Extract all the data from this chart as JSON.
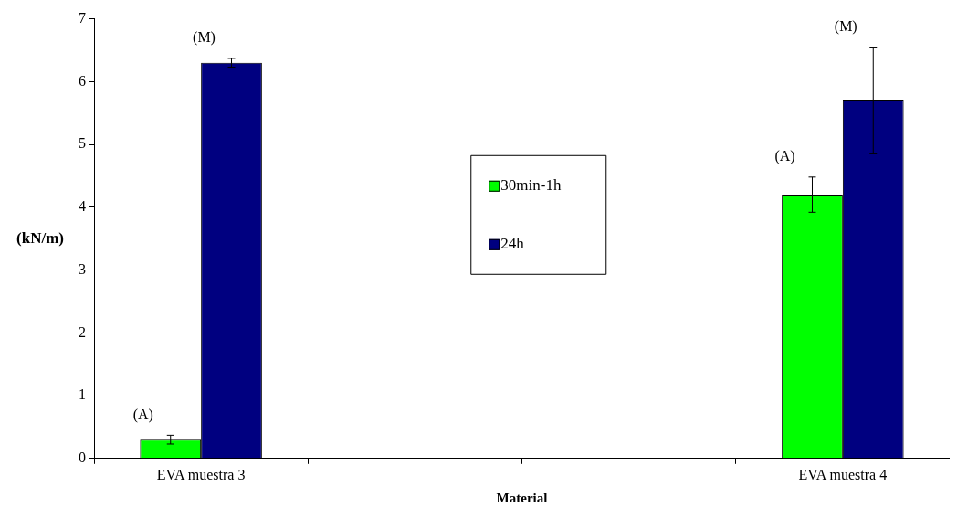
{
  "chart_data": {
    "type": "bar",
    "xlabel": "Material",
    "ylabel": "(kN/m)",
    "categories": [
      "EVA muestra 3",
      null,
      null,
      "EVA muestra 4"
    ],
    "series": [
      {
        "name": "30min-1h",
        "color": "#00ff00",
        "values": [
          0.3,
          null,
          null,
          4.2
        ],
        "errors": [
          0.07,
          null,
          null,
          0.28
        ]
      },
      {
        "name": "24h",
        "color": "#000080",
        "values": [
          6.3,
          null,
          null,
          5.7
        ],
        "errors": [
          0.07,
          null,
          null,
          0.85
        ]
      }
    ],
    "ylim": [
      0,
      7
    ],
    "yticks": [
      0,
      1,
      2,
      3,
      4,
      5,
      6,
      7
    ],
    "grid": false,
    "legend": "top",
    "annotations": [
      "(A)",
      "(M)",
      "(A)",
      "(M)"
    ]
  }
}
